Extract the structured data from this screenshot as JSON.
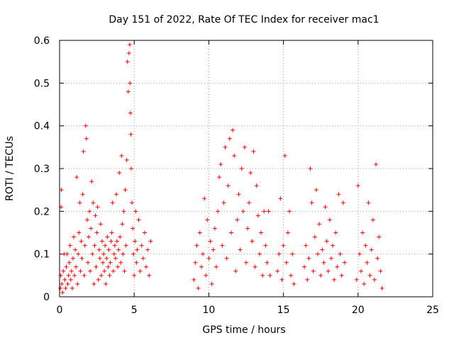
{
  "chart_data": {
    "type": "scatter",
    "title": "Day 151 of 2022, Rate Of TEC Index for receiver mac1",
    "xlabel": "GPS time / hours",
    "ylabel": "ROTI / TECUs",
    "xlim": [
      0,
      25
    ],
    "ylim": [
      0,
      0.6
    ],
    "xticks": [
      0,
      5,
      10,
      15,
      20,
      25
    ],
    "yticks": [
      0,
      0.1,
      0.2,
      0.3,
      0.4,
      0.5,
      0.6
    ],
    "xtick_labels": [
      "0",
      "5",
      "10",
      "15",
      "20",
      "25"
    ],
    "ytick_labels": [
      "0",
      "0.1",
      "0.2",
      "0.3",
      "0.4",
      "0.5",
      "0.6"
    ],
    "grid": true,
    "marker": "+",
    "color": "#ff0000",
    "series": [
      {
        "values": [
          [
            0.05,
            0.02
          ],
          [
            0.08,
            0.05
          ],
          [
            0.1,
            0.21
          ],
          [
            0.12,
            0.25
          ],
          [
            0.15,
            0.03
          ],
          [
            0.2,
            0.01
          ],
          [
            0.25,
            0.06
          ],
          [
            0.3,
            0.1
          ],
          [
            0.35,
            0.04
          ],
          [
            0.4,
            0.02
          ],
          [
            0.45,
            0.07
          ],
          [
            0.5,
            0.1
          ],
          [
            0.55,
            0.03
          ],
          [
            0.6,
            0.05
          ],
          [
            0.65,
            0.08
          ],
          [
            0.7,
            0.12
          ],
          [
            0.75,
            0.04
          ],
          [
            0.8,
            0.06
          ],
          [
            0.85,
            0.02
          ],
          [
            0.9,
            0.09
          ],
          [
            0.95,
            0.14
          ],
          [
            1.0,
            0.05
          ],
          [
            1.05,
            0.11
          ],
          [
            1.1,
            0.07
          ],
          [
            1.15,
            0.28
          ],
          [
            1.2,
            0.03
          ],
          [
            1.25,
            0.1
          ],
          [
            1.3,
            0.15
          ],
          [
            1.35,
            0.22
          ],
          [
            1.4,
            0.06
          ],
          [
            1.45,
            0.13
          ],
          [
            1.5,
            0.09
          ],
          [
            1.55,
            0.24
          ],
          [
            1.6,
            0.34
          ],
          [
            1.65,
            0.05
          ],
          [
            1.7,
            0.12
          ],
          [
            1.75,
            0.4
          ],
          [
            1.8,
            0.37
          ],
          [
            1.85,
            0.18
          ],
          [
            1.9,
            0.08
          ],
          [
            1.95,
            0.14
          ],
          [
            2.0,
            0.2
          ],
          [
            2.05,
            0.06
          ],
          [
            2.1,
            0.16
          ],
          [
            2.15,
            0.27
          ],
          [
            2.2,
            0.1
          ],
          [
            2.25,
            0.22
          ],
          [
            2.3,
            0.03
          ],
          [
            2.35,
            0.12
          ],
          [
            2.4,
            0.19
          ],
          [
            2.45,
            0.07
          ],
          [
            2.5,
            0.15
          ],
          [
            2.55,
            0.21
          ],
          [
            2.6,
            0.04
          ],
          [
            2.65,
            0.11
          ],
          [
            2.7,
            0.09
          ],
          [
            2.75,
            0.17
          ],
          [
            2.8,
            0.05
          ],
          [
            2.85,
            0.13
          ],
          [
            2.9,
            0.08
          ],
          [
            2.95,
            0.1
          ],
          [
            3.0,
            0.06
          ],
          [
            3.05,
            0.12
          ],
          [
            3.1,
            0.03
          ],
          [
            3.15,
            0.09
          ],
          [
            3.2,
            0.14
          ],
          [
            3.25,
            0.07
          ],
          [
            3.3,
            0.11
          ],
          [
            3.35,
            0.05
          ],
          [
            3.4,
            0.08
          ],
          [
            3.45,
            0.13
          ],
          [
            3.5,
            0.15
          ],
          [
            3.55,
            0.22
          ],
          [
            3.6,
            0.06
          ],
          [
            3.65,
            0.1
          ],
          [
            3.7,
            0.12
          ],
          [
            3.75,
            0.09
          ],
          [
            3.8,
            0.24
          ],
          [
            3.85,
            0.13
          ],
          [
            3.9,
            0.07
          ],
          [
            3.95,
            0.11
          ],
          [
            4.0,
            0.29
          ],
          [
            4.05,
            0.14
          ],
          [
            4.1,
            0.08
          ],
          [
            4.15,
            0.33
          ],
          [
            4.2,
            0.17
          ],
          [
            4.25,
            0.1
          ],
          [
            4.3,
            0.2
          ],
          [
            4.35,
            0.06
          ],
          [
            4.4,
            0.25
          ],
          [
            4.45,
            0.12
          ],
          [
            4.5,
            0.32
          ],
          [
            4.55,
            0.55
          ],
          [
            4.6,
            0.48
          ],
          [
            4.65,
            0.57
          ],
          [
            4.7,
            0.59
          ],
          [
            4.72,
            0.5
          ],
          [
            4.75,
            0.43
          ],
          [
            4.78,
            0.38
          ],
          [
            4.8,
            0.3
          ],
          [
            4.85,
            0.22
          ],
          [
            4.9,
            0.16
          ],
          [
            4.95,
            0.1
          ],
          [
            5.0,
            0.05
          ],
          [
            5.05,
            0.13
          ],
          [
            5.1,
            0.2
          ],
          [
            5.15,
            0.08
          ],
          [
            5.2,
            0.11
          ],
          [
            5.3,
            0.18
          ],
          [
            5.4,
            0.06
          ],
          [
            5.5,
            0.12
          ],
          [
            5.6,
            0.09
          ],
          [
            5.7,
            0.15
          ],
          [
            5.8,
            0.07
          ],
          [
            5.9,
            0.11
          ],
          [
            6.0,
            0.05
          ],
          [
            6.1,
            0.13
          ],
          [
            9.0,
            0.04
          ],
          [
            9.1,
            0.08
          ],
          [
            9.2,
            0.12
          ],
          [
            9.3,
            0.02
          ],
          [
            9.4,
            0.15
          ],
          [
            9.5,
            0.07
          ],
          [
            9.6,
            0.1
          ],
          [
            9.7,
            0.23
          ],
          [
            9.8,
            0.05
          ],
          [
            9.9,
            0.18
          ],
          [
            10.0,
            0.09
          ],
          [
            10.1,
            0.13
          ],
          [
            10.2,
            0.03
          ],
          [
            10.3,
            0.11
          ],
          [
            10.4,
            0.16
          ],
          [
            10.5,
            0.07
          ],
          [
            10.6,
            0.2
          ],
          [
            10.7,
            0.28
          ],
          [
            10.8,
            0.31
          ],
          [
            10.9,
            0.12
          ],
          [
            11.0,
            0.22
          ],
          [
            11.1,
            0.35
          ],
          [
            11.2,
            0.09
          ],
          [
            11.3,
            0.26
          ],
          [
            11.4,
            0.37
          ],
          [
            11.5,
            0.15
          ],
          [
            11.6,
            0.39
          ],
          [
            11.7,
            0.33
          ],
          [
            11.8,
            0.06
          ],
          [
            11.9,
            0.18
          ],
          [
            12.0,
            0.24
          ],
          [
            12.1,
            0.11
          ],
          [
            12.2,
            0.3
          ],
          [
            12.3,
            0.2
          ],
          [
            12.4,
            0.35
          ],
          [
            12.5,
            0.08
          ],
          [
            12.6,
            0.16
          ],
          [
            12.7,
            0.22
          ],
          [
            12.8,
            0.29
          ],
          [
            12.9,
            0.13
          ],
          [
            13.0,
            0.34
          ],
          [
            13.1,
            0.07
          ],
          [
            13.2,
            0.26
          ],
          [
            13.3,
            0.19
          ],
          [
            13.4,
            0.1
          ],
          [
            13.5,
            0.15
          ],
          [
            13.6,
            0.05
          ],
          [
            13.7,
            0.2
          ],
          [
            13.8,
            0.12
          ],
          [
            13.9,
            0.08
          ],
          [
            14.0,
            0.2
          ],
          [
            14.1,
            0.05
          ],
          [
            14.6,
            0.06
          ],
          [
            14.7,
            0.1
          ],
          [
            14.8,
            0.23
          ],
          [
            14.9,
            0.04
          ],
          [
            15.0,
            0.12
          ],
          [
            15.1,
            0.33
          ],
          [
            15.2,
            0.08
          ],
          [
            15.3,
            0.15
          ],
          [
            15.4,
            0.2
          ],
          [
            15.5,
            0.05
          ],
          [
            15.6,
            0.1
          ],
          [
            15.7,
            0.03
          ],
          [
            16.4,
            0.07
          ],
          [
            16.5,
            0.12
          ],
          [
            16.6,
            0.04
          ],
          [
            16.7,
            0.09
          ],
          [
            16.8,
            0.3
          ],
          [
            16.9,
            0.22
          ],
          [
            17.0,
            0.06
          ],
          [
            17.1,
            0.14
          ],
          [
            17.2,
            0.25
          ],
          [
            17.3,
            0.1
          ],
          [
            17.4,
            0.17
          ],
          [
            17.5,
            0.05
          ],
          [
            17.6,
            0.11
          ],
          [
            17.7,
            0.08
          ],
          [
            17.8,
            0.21
          ],
          [
            17.9,
            0.13
          ],
          [
            18.0,
            0.06
          ],
          [
            18.1,
            0.18
          ],
          [
            18.2,
            0.09
          ],
          [
            18.3,
            0.12
          ],
          [
            18.4,
            0.04
          ],
          [
            18.5,
            0.15
          ],
          [
            18.6,
            0.07
          ],
          [
            18.7,
            0.24
          ],
          [
            18.8,
            0.1
          ],
          [
            18.9,
            0.05
          ],
          [
            19.0,
            0.22
          ],
          [
            19.1,
            0.08
          ],
          [
            19.9,
            0.04
          ],
          [
            20.0,
            0.26
          ],
          [
            20.1,
            0.1
          ],
          [
            20.2,
            0.06
          ],
          [
            20.3,
            0.15
          ],
          [
            20.4,
            0.03
          ],
          [
            20.5,
            0.12
          ],
          [
            20.6,
            0.08
          ],
          [
            20.7,
            0.22
          ],
          [
            20.8,
            0.05
          ],
          [
            20.9,
            0.11
          ],
          [
            21.0,
            0.18
          ],
          [
            21.1,
            0.04
          ],
          [
            21.2,
            0.31
          ],
          [
            21.3,
            0.09
          ],
          [
            21.4,
            0.14
          ],
          [
            21.5,
            0.06
          ],
          [
            21.6,
            0.02
          ]
        ]
      }
    ]
  }
}
